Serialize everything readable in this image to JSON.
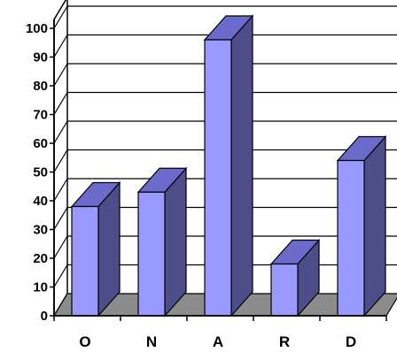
{
  "chart_data": {
    "type": "bar",
    "categories": [
      "O",
      "N",
      "A",
      "R",
      "D"
    ],
    "values": [
      38,
      43,
      96,
      18,
      54
    ],
    "ylim": [
      0,
      100
    ],
    "yticks": [
      0,
      10,
      20,
      30,
      40,
      50,
      60,
      70,
      80,
      90,
      100
    ],
    "grid": true,
    "legend": "none",
    "three_d": true,
    "colors": {
      "bar_front": "#9999ff",
      "bar_side": "#4d4d8a",
      "bar_top": "#6b6bcc",
      "floor": "#8c8c8c",
      "gridline": "#000000"
    }
  }
}
